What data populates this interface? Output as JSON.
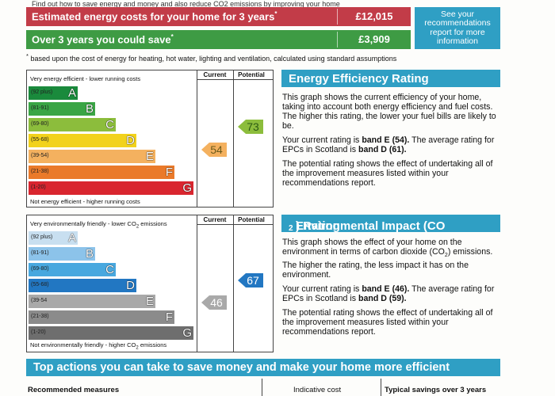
{
  "top_clip_text": "Find out how to save energy and money and also reduce CO2 emissions by improving your home",
  "costs": [
    {
      "label": "Estimated energy costs for your home for 3 years",
      "mark": "*",
      "value": "£12,015"
    },
    {
      "label": "Over 3 years you could save",
      "mark": "*",
      "value": "£3,909"
    }
  ],
  "see_recommendations": "See your recommendations report for more information",
  "footnote_mark": "*",
  "footnote": "based upon the cost of energy for heating, hot water, lighting and ventilation, calculated using standard assumptions",
  "colors": {
    "A": "#1a8a3c",
    "B": "#3aa545",
    "C": "#8cbd3c",
    "D": "#f2d21c",
    "E": "#f4b15f",
    "F": "#ea7a2a",
    "G": "#d9262f",
    "A_env": "#c8dff0",
    "B_env": "#8cc3ea",
    "C_env": "#48a8df",
    "D_env": "#2277c2",
    "E_env": "#a9a9a9",
    "F_env": "#8b8b8b",
    "G_env": "#6e6e6e",
    "accent": "#2f9fc4",
    "cost_red": "#c23c48",
    "cost_green": "#3e9b44"
  },
  "eer": {
    "header_current": "Current",
    "header_potential": "Potential",
    "top_label": "Very energy efficient - lower running costs",
    "bottom_label": "Not energy efficient - higher running costs",
    "bands": [
      {
        "range": "(92 plus)",
        "letter": "A"
      },
      {
        "range": "(81-91)",
        "letter": "B"
      },
      {
        "range": "(69-80)",
        "letter": "C"
      },
      {
        "range": "(55-68)",
        "letter": "D"
      },
      {
        "range": "(39-54)",
        "letter": "E"
      },
      {
        "range": "(21-38)",
        "letter": "F"
      },
      {
        "range": "(1-20)",
        "letter": "G"
      }
    ],
    "current": "54",
    "potential": "73"
  },
  "eir": {
    "header_current": "Current",
    "header_potential": "Potential",
    "top_label_pre": "Very environmentally friendly - lower CO",
    "top_label_sub": "2",
    "top_label_post": " emissions",
    "bottom_label_pre": "Not environmentally friendly - higher CO",
    "bottom_label_sub": "2",
    "bottom_label_post": " emissions",
    "bands": [
      {
        "range": "(92 plus)",
        "letter": "A"
      },
      {
        "range": "(81-91)",
        "letter": "B"
      },
      {
        "range": "(69-80)",
        "letter": "C"
      },
      {
        "range": "(55-68)",
        "letter": "D"
      },
      {
        "range": "(39-54",
        "letter": "E"
      },
      {
        "range": "(21-38)",
        "letter": "F"
      },
      {
        "range": "(1-20)",
        "letter": "G"
      }
    ],
    "current": "46",
    "potential": "67"
  },
  "eer_panel": {
    "title": "Energy Efficiency Rating",
    "p1": "This graph shows the current efficiency of your home, taking into account both energy efficiency and fuel costs. The higher this rating, the lower your fuel bills are likely to be.",
    "p2_a": "Your current rating is ",
    "p2_b": "band E (54).",
    "p2_c": " The average rating for EPCs in Scotland is ",
    "p2_d": "band D (61).",
    "p3": "The potential rating shows the effect of undertaking all of the improvement measures listed within your recommendations report."
  },
  "eir_panel": {
    "title_pre": "Environmental Impact (CO",
    "title_sub": "2",
    "title_post": ") Rating",
    "p1_a": "This graph shows the effect of your home on the environment in terms of carbon dioxide (CO",
    "p1_sub": "2",
    "p1_b": ") emissions. The higher the rating, the less impact it has on the environment.",
    "p2_a": "Your current rating is ",
    "p2_b": "band E (46).",
    "p2_c": " The average rating for EPCs in Scotland is ",
    "p2_d": "band D (59).",
    "p3": "The potential rating shows the effect of undertaking all of the improvement measures listed within your recommendations report."
  },
  "actions_title": "Top actions you can take to save money and make your home more efficient",
  "bottom_headers": {
    "measures": "Recommended measures",
    "cost": "Indicative cost",
    "savings": "Typical savings over 3 years"
  }
}
